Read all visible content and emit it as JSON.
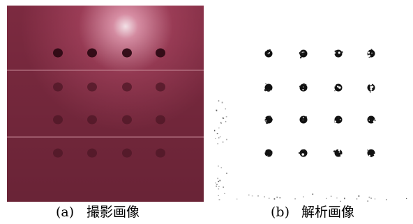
{
  "panels": [
    {
      "label": "(a)",
      "title": "撮影画像"
    },
    {
      "label": "(b)",
      "title": "解析画像"
    }
  ]
}
